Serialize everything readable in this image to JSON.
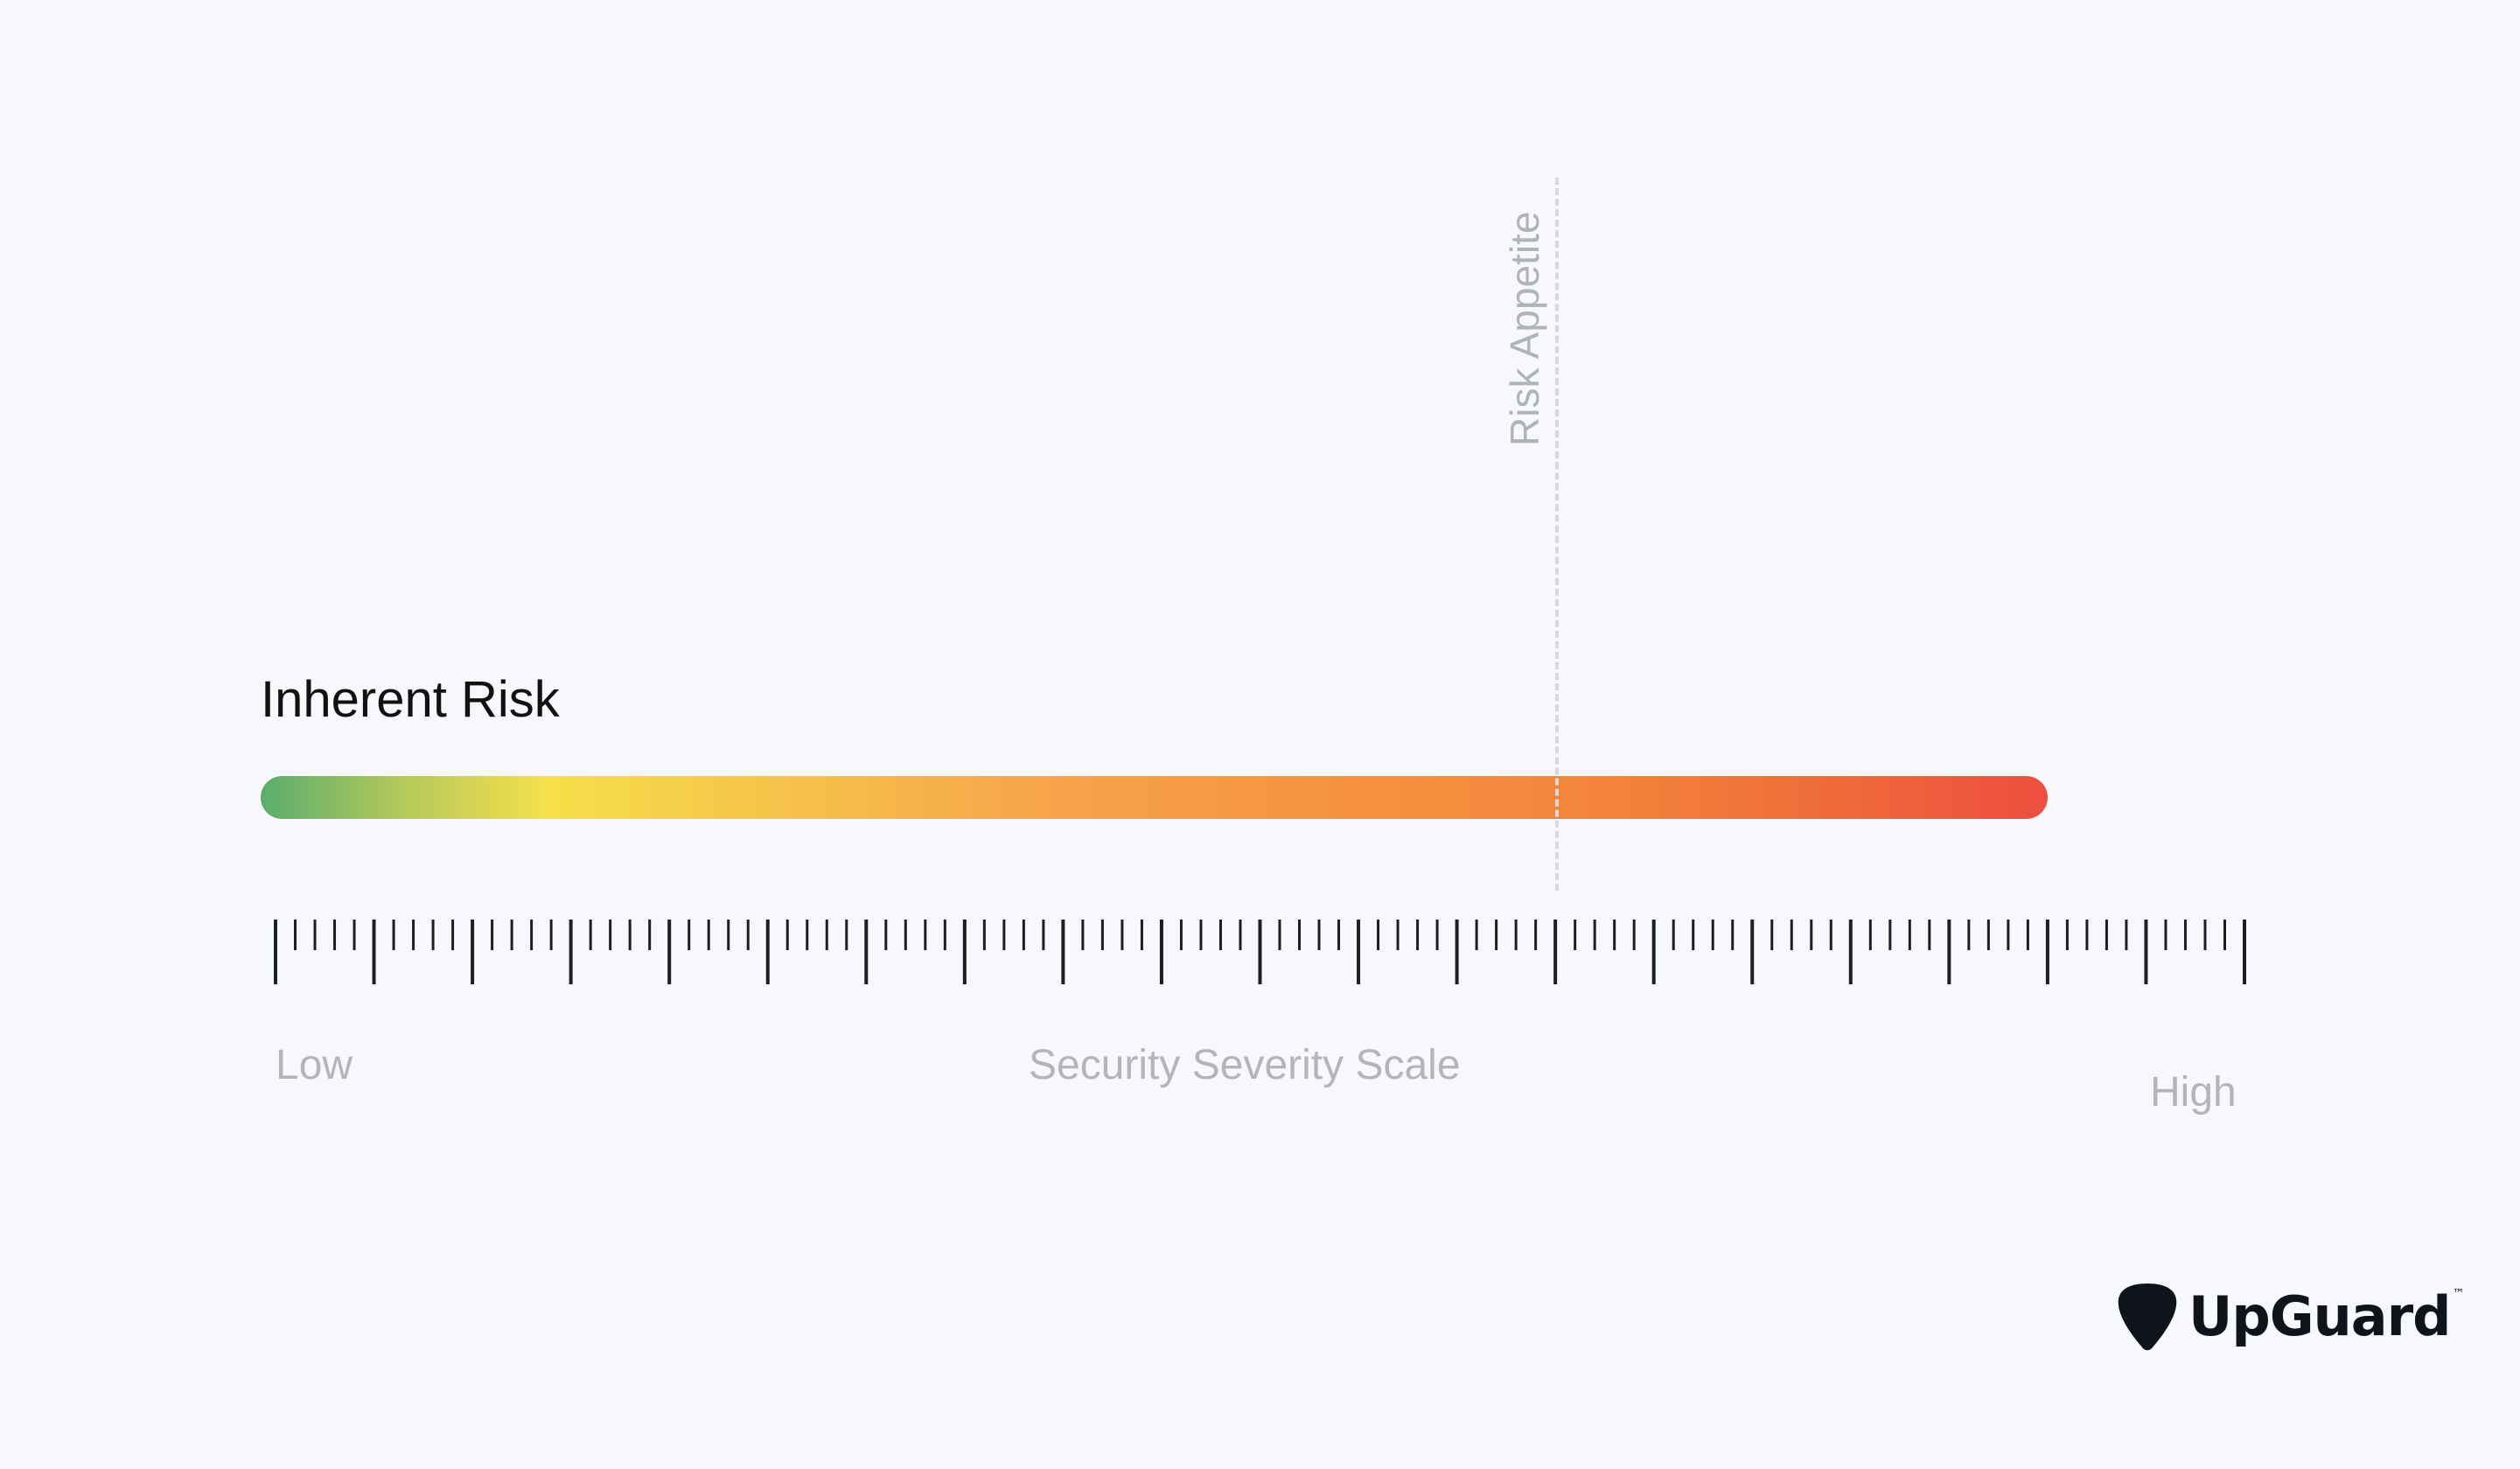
{
  "diagram": {
    "bar_label": "Inherent Risk",
    "threshold_label": "Risk Appetite",
    "scale": {
      "title": "Security Severity Scale",
      "min_label": "Low",
      "max_label": "High",
      "major_ticks": 21,
      "minor_per_major": 4,
      "threshold_value": 13.16,
      "bar_value": 18.14
    },
    "bar_gradient": [
      "#5aad6e",
      "#f6e04a",
      "#f7a24a",
      "#f4843a",
      "#ee4e40"
    ]
  },
  "brand": {
    "name": "UpGuard",
    "trademark": "™",
    "color": "#10131c"
  }
}
